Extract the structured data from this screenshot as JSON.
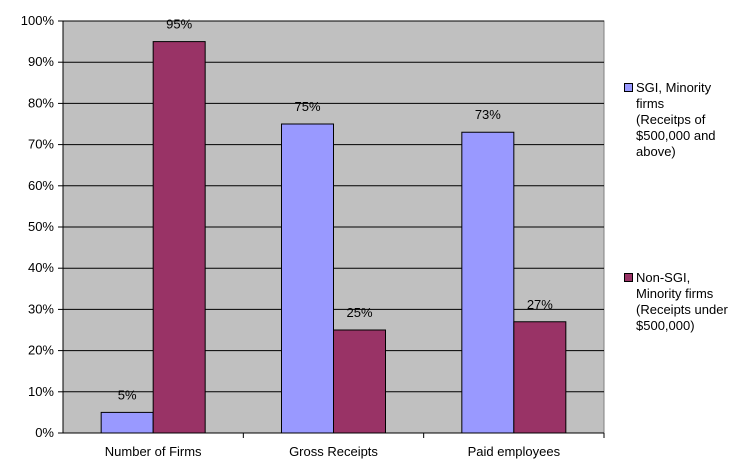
{
  "chart_data": {
    "type": "bar",
    "categories": [
      "Number of Firms",
      "Gross Receipts",
      "Paid employees"
    ],
    "series": [
      {
        "name": "SGI, Minority firms (Receitps of $500,000 and above)",
        "legend_lines": "SGI, Minority\nfirms\n(Receitps of\n$500,000 and\nabove)",
        "values": [
          5,
          75,
          73
        ],
        "labels": [
          "5%",
          "75%",
          "73%"
        ],
        "color": "#9999FF"
      },
      {
        "name": "Non-SGI, Minority firms (Receipts under $500,000)",
        "legend_lines": "Non-SGI,\nMinority firms\n(Receipts under\n$500,000)",
        "values": [
          95,
          25,
          27
        ],
        "labels": [
          "95%",
          "25%",
          "27%"
        ],
        "color": "#993366"
      }
    ],
    "y_ticks": [
      "0%",
      "10%",
      "20%",
      "30%",
      "40%",
      "50%",
      "60%",
      "70%",
      "80%",
      "90%",
      "100%"
    ],
    "ylim": [
      0,
      100
    ],
    "grid": true,
    "plot_background": "#C0C0C0",
    "legend_position": "right"
  }
}
